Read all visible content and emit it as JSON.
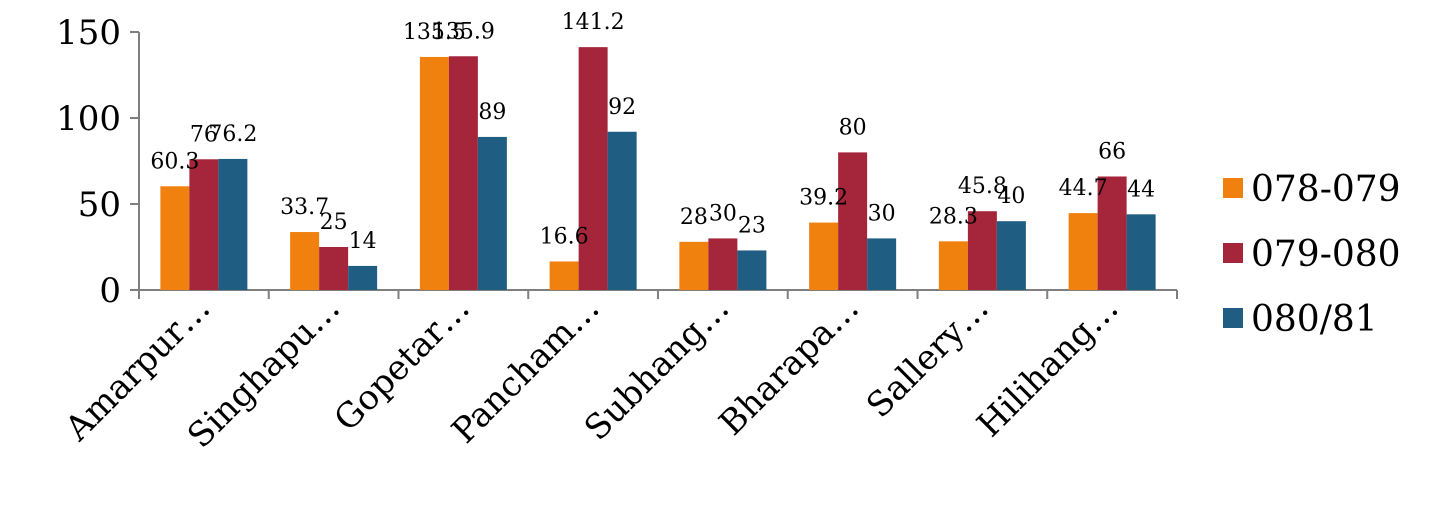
{
  "chart_data": {
    "type": "bar",
    "categories": [
      "Amarpur…",
      "Singhapu…",
      "Gopetar…",
      "Pancham…",
      "Subhang…",
      "Bharapa…",
      "Sallery…",
      "Hilihang…"
    ],
    "series": [
      {
        "name": "078-079",
        "color": "#f0810f",
        "values": [
          60.3,
          33.7,
          135.5,
          16.6,
          28,
          39.2,
          28.3,
          44.7
        ],
        "labels": [
          "60.3",
          "33.7",
          "135.5",
          "16.6",
          "28",
          "39.2",
          "28.3",
          "44.7"
        ]
      },
      {
        "name": "079-080",
        "color": "#a5253a",
        "values": [
          76,
          25,
          135.9,
          141.2,
          30,
          80,
          45.8,
          66
        ],
        "labels": [
          "76",
          "25",
          "135.9",
          "141.2",
          "30",
          "80",
          "45.8",
          "66"
        ]
      },
      {
        "name": "080/81",
        "color": "#1f5e82",
        "values": [
          76.2,
          14,
          89,
          92,
          23,
          30,
          40,
          44
        ],
        "labels": [
          "76.2",
          "14",
          "89",
          "92",
          "23",
          "30",
          "40",
          "44"
        ]
      }
    ],
    "ylim": [
      0,
      150
    ],
    "yticks": [
      0,
      50,
      100,
      150
    ],
    "title": "",
    "xlabel": "",
    "ylabel": "",
    "grid": false,
    "legend_position": "right"
  }
}
